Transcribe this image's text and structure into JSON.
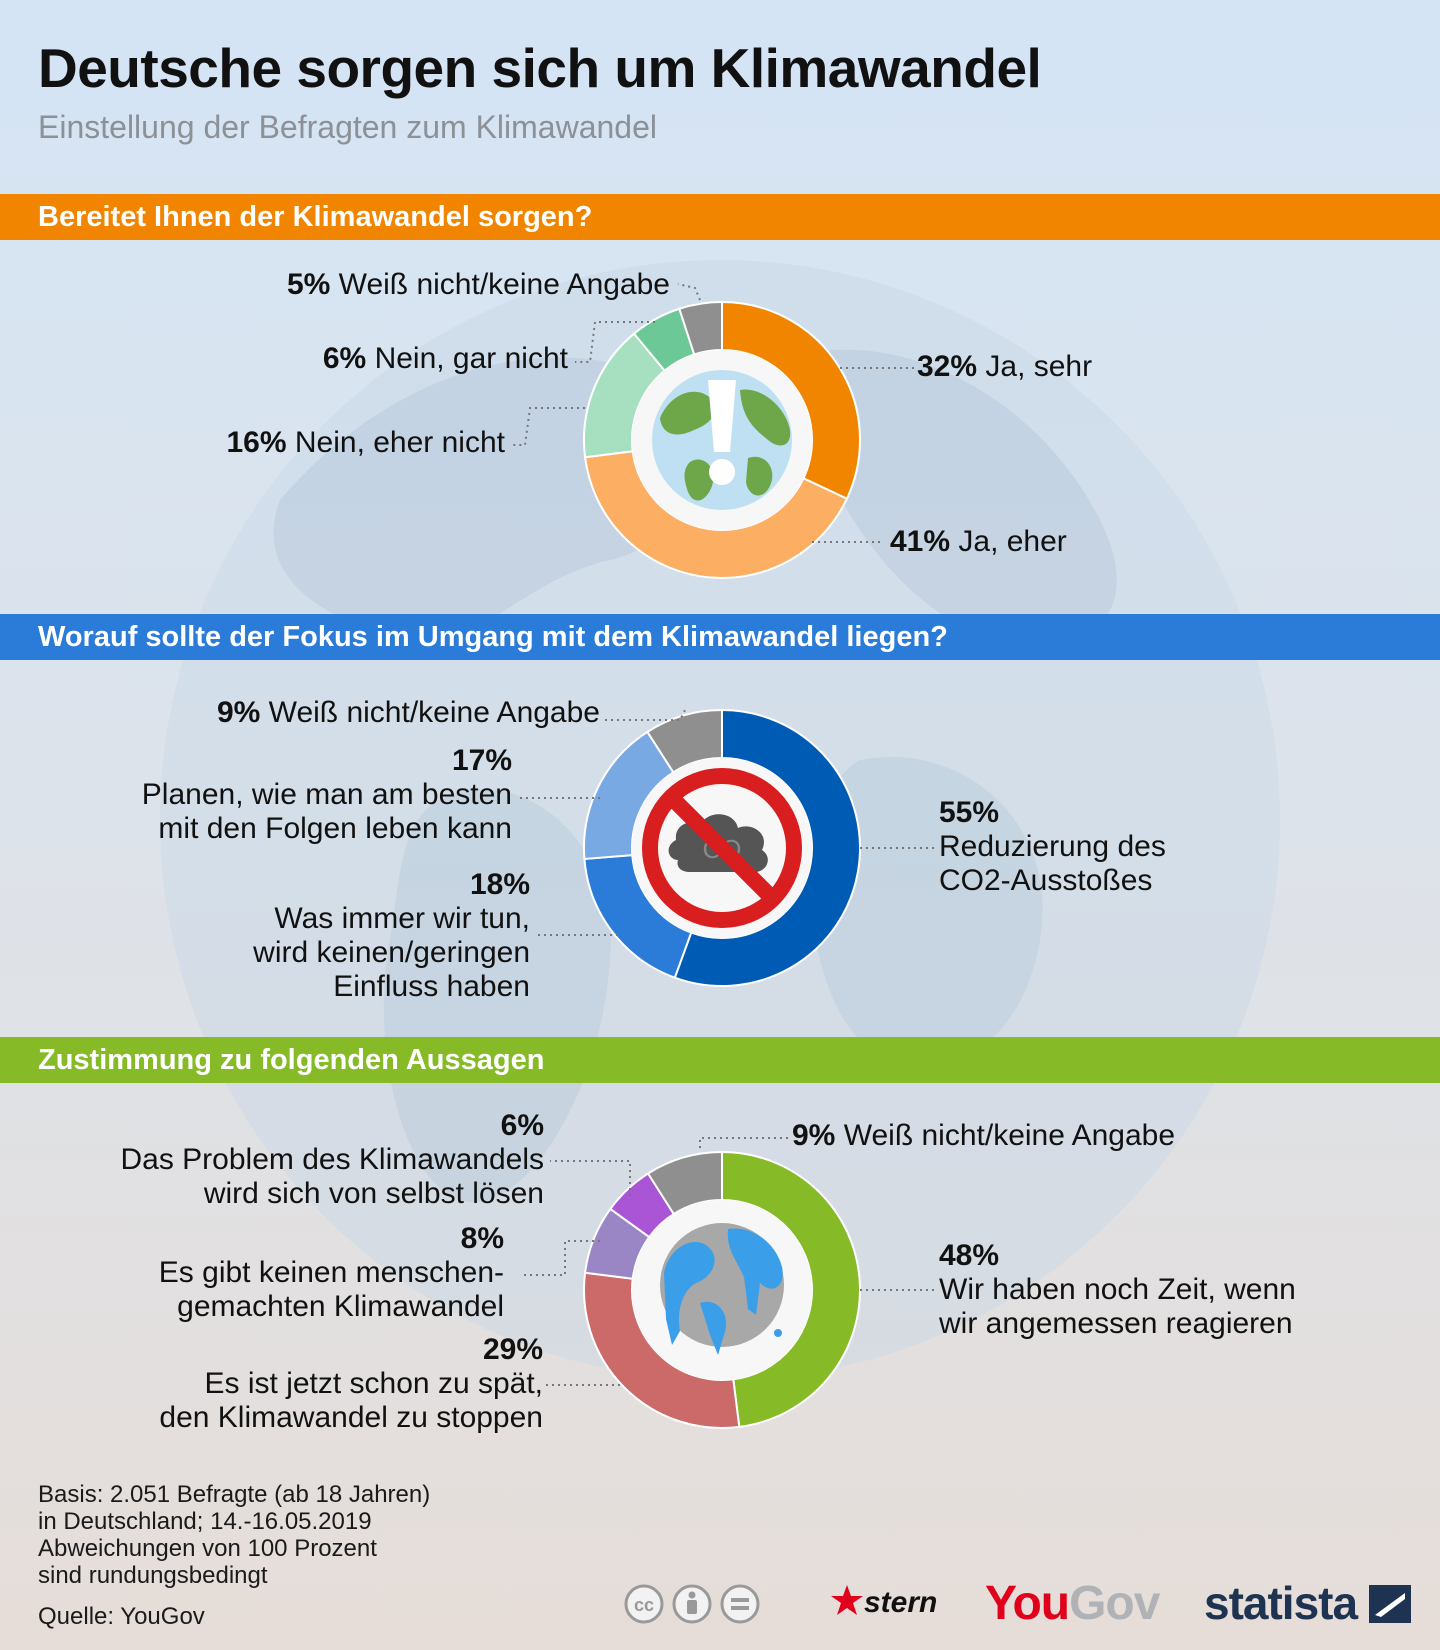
{
  "title": "Deutsche sorgen sich um Klimawandel",
  "subtitle": "Einstellung der Befragten zum Klimawandel",
  "colors": {
    "orange": "#f28500",
    "light_orange": "#fcae62",
    "light_green": "#a6e0c0",
    "green": "#6cc896",
    "gray": "#8f8f8f",
    "dark_blue": "#005bb5",
    "blue": "#2b7bd8",
    "light_blue": "#79a9e3",
    "lime": "#86bb27",
    "red": "#cc6a6a",
    "lavender": "#9a86c4",
    "purple": "#aa55d6"
  },
  "chart_data": [
    {
      "type": "donut",
      "title": "Bereitet Ihnen der Klimawandel sorgen?",
      "center_icon": "globe-exclamation-icon",
      "slices": [
        {
          "label": "Ja, sehr",
          "value": 32,
          "pct_text": "32%",
          "color": "#f28500"
        },
        {
          "label": "Ja, eher",
          "value": 41,
          "pct_text": "41%",
          "color": "#fcae62"
        },
        {
          "label": "Nein, eher nicht",
          "value": 16,
          "pct_text": "16%",
          "color": "#a6e0c0"
        },
        {
          "label": "Nein, gar nicht",
          "value": 6,
          "pct_text": "6%",
          "color": "#6cc896"
        },
        {
          "label": "Weiß nicht/keine Angabe",
          "value": 5,
          "pct_text": "5%",
          "color": "#8f8f8f"
        }
      ]
    },
    {
      "type": "donut",
      "title": "Worauf sollte der Fokus im Umgang mit dem Klimawandel liegen?",
      "center_icon": "no-co2-icon",
      "slices": [
        {
          "label": "Reduzierung des CO2-Ausstoßes",
          "lines": [
            "Reduzierung des",
            "CO2-Ausstoßes"
          ],
          "value": 55,
          "pct_text": "55%",
          "color": "#005bb5"
        },
        {
          "label": "Was immer wir tun, wird keinen/geringen Einfluss haben",
          "lines": [
            "Was immer wir tun,",
            "wird keinen/geringen",
            "Einfluss haben"
          ],
          "value": 18,
          "pct_text": "18%",
          "color": "#2b7bd8"
        },
        {
          "label": "Planen, wie man am besten mit den Folgen leben kann",
          "lines": [
            "Planen, wie man am besten",
            "mit den Folgen leben kann"
          ],
          "value": 17,
          "pct_text": "17%",
          "color": "#79a9e3"
        },
        {
          "label": "Weiß nicht/keine Angabe",
          "value": 9,
          "pct_text": "9%",
          "color": "#8f8f8f"
        }
      ]
    },
    {
      "type": "donut",
      "title": "Zustimmung zu folgenden Aussagen",
      "center_icon": "melting-globe-icon",
      "slices": [
        {
          "label": "Wir haben noch Zeit, wenn wir angemessen reagieren",
          "lines": [
            "Wir haben noch Zeit, wenn",
            "wir angemessen reagieren"
          ],
          "value": 48,
          "pct_text": "48%",
          "color": "#86bb27"
        },
        {
          "label": "Es ist jetzt schon zu spät, den Klimawandel zu stoppen",
          "lines": [
            "Es ist jetzt schon zu spät,",
            "den Klimawandel zu stoppen"
          ],
          "value": 29,
          "pct_text": "29%",
          "color": "#cc6a6a"
        },
        {
          "label": "Es gibt keinen menschengemachten Klimawandel",
          "lines": [
            "Es gibt keinen menschen-",
            "gemachten Klimawandel"
          ],
          "value": 8,
          "pct_text": "8%",
          "color": "#9a86c4"
        },
        {
          "label": "Das Problem des Klimawandels wird sich von selbst lösen",
          "lines": [
            "Das Problem des Klimawandels",
            "wird sich von selbst lösen"
          ],
          "value": 6,
          "pct_text": "6%",
          "color": "#aa55d6"
        },
        {
          "label": "Weiß nicht/keine Angabe",
          "value": 9,
          "pct_text": "9%",
          "color": "#8f8f8f"
        }
      ]
    }
  ],
  "footer": {
    "basis_lines": [
      "Basis: 2.051 Befragte (ab 18 Jahren)",
      "in Deutschland; 14.-16.05.2019",
      "Abweichungen von 100 Prozent",
      "sind rundungsbedingt"
    ],
    "source": "Quelle: YouGov"
  },
  "logos": {
    "stern": "stern",
    "yougov_you": "You",
    "yougov_gov": "Gov",
    "statista": "statista",
    "cc_icon": "cc-icon",
    "by_icon": "attribution-icon",
    "nd_icon": "no-derivatives-icon"
  }
}
